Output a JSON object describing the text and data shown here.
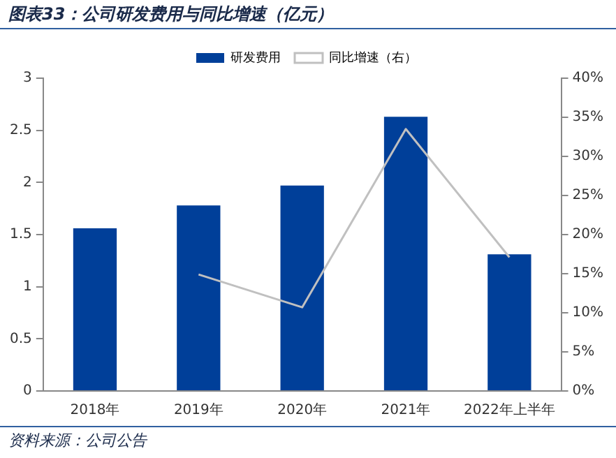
{
  "chart_data": {
    "type": "bar",
    "title": "图表33：公司研发费用与同比增速（亿元）",
    "categories": [
      "2018年",
      "2019年",
      "2020年",
      "2021年",
      "2022年上半年"
    ],
    "series": [
      {
        "name": "研发费用",
        "color": "#003f99",
        "values": [
          1.56,
          1.78,
          1.97,
          2.63,
          1.31
        ]
      },
      {
        "name": "同比增速（右）",
        "type": "line",
        "axis": "y2",
        "color": "#c0c0c0",
        "values": [
          null,
          14.9,
          10.7,
          33.5,
          17.1
        ]
      }
    ],
    "ylim": [
      0,
      3
    ],
    "yticks": [
      0,
      0.5,
      1,
      1.5,
      2,
      2.5,
      3
    ],
    "y2lim": [
      0,
      40
    ],
    "y2ticks": [
      {
        "value": 0,
        "label": "0%"
      },
      {
        "value": 5,
        "label": "5%"
      },
      {
        "value": 10,
        "label": "10%"
      },
      {
        "value": 15,
        "label": "15%"
      },
      {
        "value": 20,
        "label": "20%"
      },
      {
        "value": 25,
        "label": "25%"
      },
      {
        "value": 30,
        "label": "30%"
      },
      {
        "value": 35,
        "label": "35%"
      },
      {
        "value": 40,
        "label": "40%"
      }
    ],
    "grid": false,
    "legend": "top",
    "marker": "none",
    "annotations": [
      "资料来源：公司公告"
    ]
  }
}
